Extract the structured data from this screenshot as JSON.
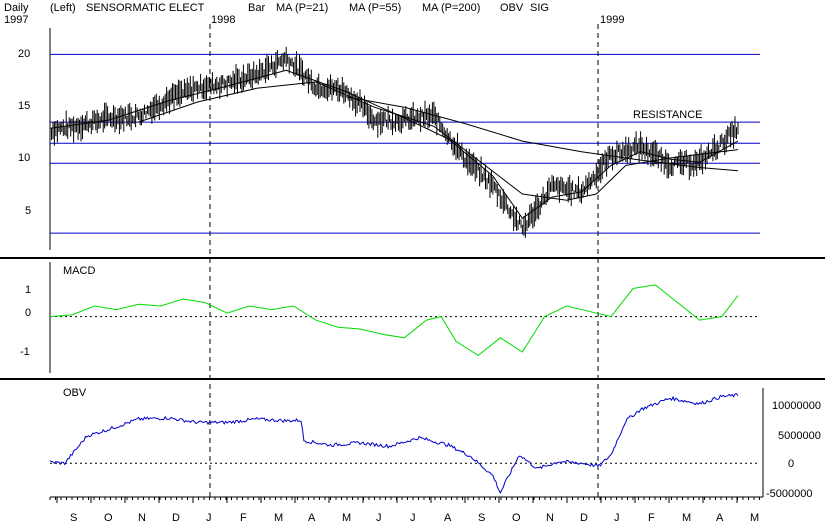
{
  "header": {
    "period": "Daily",
    "scale": "(Left)",
    "security": "SENSORMATIC ELECT",
    "style": "Bar",
    "ma1": "MA (P=21)",
    "ma2": "MA (P=55)",
    "ma3": "MA (P=200)",
    "obv": "OBV",
    "sig": "SIG"
  },
  "colors": {
    "price": "#000000",
    "support_resistance": "#0000cc",
    "macd": "#00dd00",
    "obv": "#0000cc",
    "grid_dash": "#000000"
  },
  "chart_data": [
    {
      "type": "line",
      "panel": "price",
      "years": [
        "1997",
        "1998",
        "1999"
      ],
      "y_ticks": [
        "20",
        "15",
        "10",
        "5"
      ],
      "ylim": [
        1.5,
        22.5
      ],
      "x_index_range": [
        0,
        466
      ],
      "annotation": "RESISTANCE",
      "horizontal_levels": [
        20,
        13.6,
        11.6,
        9.7,
        3.1
      ],
      "price_series": {
        "name": "",
        "x": [
          0,
          20,
          40,
          60,
          80,
          100,
          120,
          140,
          160,
          180,
          200,
          220,
          240,
          260,
          280,
          300,
          320,
          340,
          360,
          380,
          400,
          420,
          440,
          466
        ],
        "values": [
          12.8,
          13.3,
          14.0,
          14.2,
          15.8,
          16.9,
          17.3,
          18.1,
          19.7,
          17.0,
          16.6,
          13.8,
          13.8,
          14.2,
          10.3,
          7.6,
          3.5,
          7.5,
          7.0,
          10.5,
          11.3,
          9.6,
          9.8,
          13.0
        ]
      },
      "ma_series": [
        {
          "name": "MA (P=21)",
          "x": [
            0,
            40,
            80,
            120,
            160,
            200,
            240,
            270,
            300,
            320,
            340,
            360,
            380,
            400,
            420,
            440,
            466
          ],
          "values": [
            13.0,
            13.8,
            15.6,
            17.0,
            18.5,
            16.5,
            14.0,
            12.0,
            8.5,
            4.5,
            6.5,
            7.0,
            9.5,
            10.8,
            10.1,
            9.8,
            11.8
          ]
        },
        {
          "name": "MA (P=55)",
          "x": [
            60,
            100,
            140,
            180,
            220,
            260,
            290,
            320,
            350,
            370,
            390,
            420,
            466
          ],
          "values": [
            13.6,
            15.5,
            16.8,
            17.4,
            15.0,
            13.2,
            10.0,
            6.8,
            6.2,
            6.8,
            9.5,
            10.2,
            11.0
          ]
        },
        {
          "name": "MA (P=200)",
          "x": [
            200,
            240,
            280,
            320,
            360,
            400,
            440,
            466
          ],
          "values": [
            16.0,
            15.0,
            13.5,
            11.8,
            10.8,
            10.0,
            9.3,
            9.0
          ]
        }
      ]
    },
    {
      "type": "line",
      "panel": "macd",
      "title": "MACD",
      "y_ticks": [
        "1",
        "0",
        "-1"
      ],
      "ylim": [
        -1.6,
        1.55
      ],
      "zero_line": true,
      "series": [
        {
          "name": "",
          "x": [
            0,
            15,
            30,
            45,
            60,
            75,
            90,
            105,
            120,
            135,
            150,
            165,
            180,
            195,
            210,
            225,
            240,
            255,
            265,
            275,
            290,
            305,
            320,
            335,
            350,
            365,
            380,
            395,
            410,
            425,
            440,
            455,
            466
          ],
          "values": [
            0.0,
            0.05,
            0.3,
            0.2,
            0.35,
            0.3,
            0.5,
            0.4,
            0.1,
            0.3,
            0.2,
            0.3,
            -0.1,
            -0.3,
            -0.35,
            -0.5,
            -0.6,
            -0.1,
            0.0,
            -0.7,
            -1.1,
            -0.6,
            -1.0,
            0.0,
            0.3,
            0.15,
            0.0,
            0.8,
            0.9,
            0.4,
            -0.1,
            0.0,
            0.6
          ]
        }
      ]
    },
    {
      "type": "line",
      "panel": "obv",
      "title": "OBV",
      "y_ticks": [
        "10000000",
        "5000000",
        "0",
        "-5000000"
      ],
      "ylim": [
        -6500000,
        14000000
      ],
      "zero_line": true,
      "series": [
        {
          "name": "",
          "x": [
            0,
            10,
            25,
            40,
            60,
            80,
            100,
            120,
            140,
            160,
            170,
            172,
            190,
            210,
            230,
            250,
            270,
            285,
            300,
            305,
            318,
            330,
            345,
            360,
            372,
            380,
            390,
            400,
            420,
            440,
            455,
            466
          ],
          "values": [
            200000,
            0,
            4800000,
            6000000,
            7800000,
            8000000,
            7200000,
            7200000,
            7800000,
            7500000,
            7600000,
            4000000,
            3200000,
            3600000,
            3000000,
            4500000,
            3200000,
            1200000,
            -2200000,
            -5200000,
            1500000,
            -1000000,
            300000,
            0,
            -500000,
            1500000,
            7500000,
            9500000,
            11500000,
            10500000,
            11800000,
            12000000
          ]
        }
      ]
    }
  ],
  "x_axis": {
    "months": [
      "S",
      "O",
      "N",
      "D",
      "J",
      "F",
      "M",
      "A",
      "M",
      "J",
      "J",
      "A",
      "S",
      "O",
      "N",
      "D",
      "J",
      "F",
      "M",
      "A",
      "M"
    ]
  }
}
